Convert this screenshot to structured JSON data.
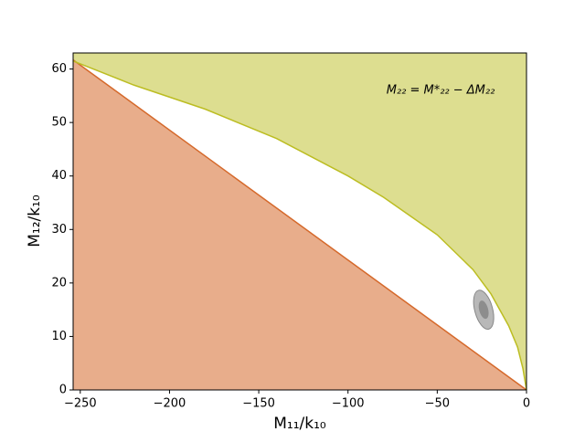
{
  "chart_data": {
    "type": "region",
    "xlabel": "M₁₁/k₁₀",
    "ylabel": "M₁₂/k₁₀",
    "annotation": "M₂₂ = M*₂₂ − ΔM₂₂",
    "xlim": [
      -254,
      0
    ],
    "ylim": [
      0,
      63
    ],
    "xticks": [
      {
        "value": -250,
        "label": "−250"
      },
      {
        "value": -200,
        "label": "−200"
      },
      {
        "value": -150,
        "label": "−150"
      },
      {
        "value": -100,
        "label": "−100"
      },
      {
        "value": -50,
        "label": "−50"
      },
      0
    ],
    "yticks": [
      0,
      10,
      20,
      30,
      40,
      50,
      60
    ],
    "lower_boundary": {
      "color": "#d5692b",
      "x": [
        -254,
        0
      ],
      "y": [
        61.7,
        0
      ]
    },
    "upper_boundary": {
      "color": "#bcbd22",
      "x": [
        0,
        -2,
        -5,
        -10,
        -20,
        -30,
        -50,
        -80,
        -100,
        -140,
        -180,
        -220,
        -254
      ],
      "y": [
        0,
        4,
        8,
        12,
        18,
        22.5,
        29,
        36,
        40,
        47,
        52.5,
        57,
        61.5
      ]
    },
    "ellipse": {
      "x": -24,
      "y": 15,
      "width": 10,
      "height": 7.5,
      "inner_width": 5,
      "inner_height": 3.5,
      "color": "#888888"
    }
  }
}
